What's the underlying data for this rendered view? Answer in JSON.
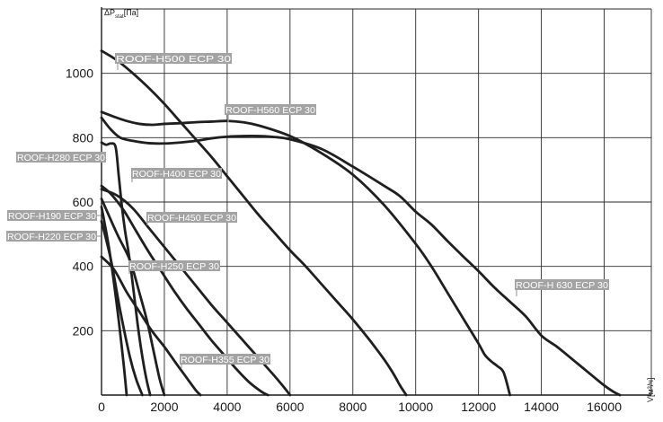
{
  "chart_data": {
    "type": "line",
    "ylabel": "ΔP",
    "ylabel_sub": "stat",
    "ylabel_unit": "[Па]",
    "xlabel": "V[м³/ч]",
    "xlim": [
      0,
      17500
    ],
    "ylim": [
      0,
      1200
    ],
    "xticks": [
      "0",
      "2000",
      "4000",
      "6000",
      "8000",
      "10000",
      "12000",
      "14000",
      "16000"
    ],
    "yticks": [
      "200",
      "400",
      "600",
      "800",
      "1000"
    ],
    "grid": true,
    "line_color": "#1f1f1f",
    "label_color": "#a3a3a3",
    "series": [
      {
        "name": "ROOF-H190 ECP 30",
        "x": [
          0,
          250,
          500,
          700,
          800
        ],
        "y": [
          585,
          450,
          270,
          100,
          0
        ]
      },
      {
        "name": "ROOF-H220 ECP 30",
        "x": [
          0,
          300,
          600,
          900,
          1100,
          1300
        ],
        "y": [
          540,
          420,
          260,
          120,
          50,
          0
        ]
      },
      {
        "name": "ROOF-H250 ECP 30",
        "x": [
          0,
          500,
          900,
          1200,
          1450,
          1650,
          1850,
          2000
        ],
        "y": [
          610,
          500,
          420,
          320,
          230,
          140,
          50,
          0
        ]
      },
      {
        "name": "ROOF-H280 ECP 30",
        "x": [
          0,
          150,
          300,
          450,
          550,
          650,
          750,
          850,
          950,
          1050,
          1150,
          1250,
          1350,
          1450,
          1550
        ],
        "y": [
          785,
          778,
          782,
          770,
          680,
          585,
          510,
          450,
          380,
          300,
          220,
          150,
          90,
          40,
          0
        ]
      },
      {
        "name": "ROOF-H355 ECP 30",
        "x": [
          0,
          400,
          800,
          1200,
          1600,
          2000,
          2400,
          2700,
          3000,
          3150
        ],
        "y": [
          430,
          390,
          320,
          260,
          200,
          150,
          95,
          55,
          15,
          0
        ]
      },
      {
        "name": "ROOF-H400 ECP 30",
        "x": [
          0,
          300,
          700,
          1100,
          1500,
          1900,
          2300,
          2700,
          3100,
          3500,
          3900,
          4300,
          4700,
          5100,
          5300
        ],
        "y": [
          650,
          625,
          575,
          510,
          445,
          385,
          325,
          270,
          220,
          170,
          125,
          80,
          40,
          10,
          0
        ]
      },
      {
        "name": "ROOF-H450 ECP 30",
        "x": [
          0,
          500,
          1000,
          1500,
          2000,
          2500,
          3000,
          3500,
          4000,
          4500,
          5000,
          5500,
          5800,
          6000
        ],
        "y": [
          640,
          620,
          580,
          520,
          460,
          400,
          340,
          280,
          225,
          170,
          115,
          60,
          25,
          0
        ]
      },
      {
        "name": "ROOF-H500 ECP 30",
        "x": [
          0,
          500,
          1000,
          1500,
          2000,
          2500,
          3000,
          3500,
          4000,
          4500,
          5000,
          5500,
          6000,
          6500,
          7000,
          7500,
          8000,
          8500,
          9000,
          9300,
          9500,
          9700
        ],
        "y": [
          1070,
          1040,
          1000,
          955,
          905,
          850,
          795,
          740,
          680,
          620,
          560,
          505,
          450,
          400,
          345,
          290,
          235,
          175,
          110,
          65,
          30,
          0
        ]
      },
      {
        "name": "ROOF-H560 ECP 30",
        "x": [
          0,
          400,
          800,
          1200,
          1600,
          2000,
          2500,
          3000,
          3500,
          4000,
          4500,
          5000,
          6000,
          7000,
          8000,
          9000,
          10000,
          10500,
          11000,
          11500,
          12000,
          12200,
          12400,
          12600,
          12800,
          13000
        ],
        "y": [
          880,
          865,
          852,
          843,
          840,
          843,
          845,
          848,
          850,
          852,
          848,
          838,
          805,
          752,
          685,
          590,
          470,
          400,
          320,
          240,
          160,
          125,
          105,
          90,
          70,
          0
        ]
      },
      {
        "name": "ROOF-H 630 ECP 30",
        "x": [
          0,
          300,
          600,
          1000,
          1500,
          2000,
          2500,
          3000,
          3500,
          4000,
          4500,
          5000,
          5500,
          6000,
          7000,
          8000,
          9000,
          9500,
          10000,
          10500,
          11000,
          11500,
          12000,
          12500,
          13000,
          13500,
          14000,
          14500,
          15000,
          15500,
          16000,
          16300,
          16500
        ],
        "y": [
          862,
          825,
          800,
          790,
          783,
          782,
          785,
          790,
          798,
          803,
          805,
          805,
          802,
          795,
          765,
          710,
          650,
          618,
          570,
          530,
          480,
          432,
          385,
          335,
          290,
          245,
          185,
          150,
          110,
          70,
          30,
          10,
          0
        ]
      }
    ],
    "labels": [
      {
        "text": "ROOF-H500 ECP 30",
        "series": "ROOF-H500 ECP 30"
      },
      {
        "text": "ROOF-H560 ECP 30",
        "series": "ROOF-H560 ECP 30"
      },
      {
        "text": "ROOF-H280 ECP 30",
        "series": "ROOF-H280 ECP 30"
      },
      {
        "text": "ROOF-H400 ECP 30",
        "series": "ROOF-H400 ECP 30"
      },
      {
        "text": "ROOF-H190 ECP 30",
        "series": "ROOF-H190 ECP 30"
      },
      {
        "text": "ROOF-H450 ECP 30",
        "series": "ROOF-H450 ECP 30"
      },
      {
        "text": "ROOF-H220 ECP 30",
        "series": "ROOF-H220 ECP 30"
      },
      {
        "text": "ROOF-H250 ECP 30",
        "series": "ROOF-H250 ECP 30"
      },
      {
        "text": "ROOF-H 630 ECP 30",
        "series": "ROOF-H 630 ECP 30"
      },
      {
        "text": "ROOF-H355 ECP 30",
        "series": "ROOF-H355 ECP 30"
      }
    ]
  }
}
